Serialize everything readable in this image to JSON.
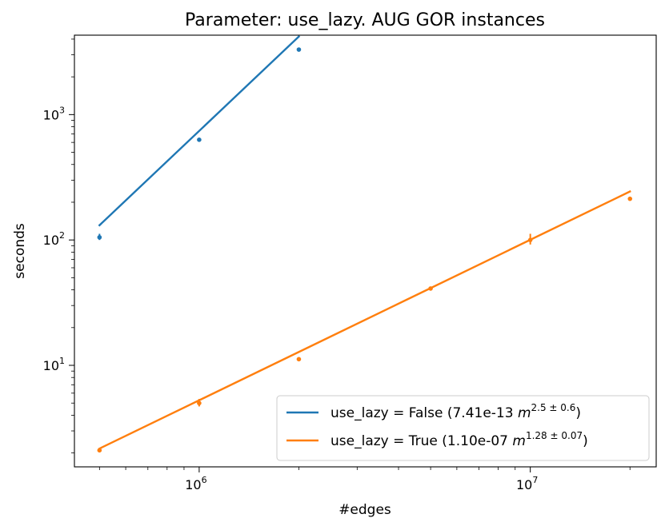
{
  "chart_data": {
    "type": "line",
    "title": "Parameter: use_lazy. AUG GOR instances",
    "xlabel": "#edges",
    "ylabel": "seconds",
    "xscale": "log",
    "yscale": "log",
    "xlim": [
      420000,
      24000000
    ],
    "ylim": [
      1.55,
      4300
    ],
    "x_ticks": [
      {
        "base": "10",
        "exp": "6"
      },
      {
        "base": "10",
        "exp": "7"
      }
    ],
    "y_ticks": [
      {
        "base": "10",
        "exp": "1"
      },
      {
        "base": "10",
        "exp": "2"
      },
      {
        "base": "10",
        "exp": "3"
      }
    ],
    "legend_position": "lower right",
    "series": [
      {
        "name": "use_lazy = False",
        "legend_prefix": "use_lazy = False (7.41e-13 ",
        "legend_var": "m",
        "legend_exp": "2.5 ± 0.6",
        "legend_suffix": ")",
        "color": "#1f77b4",
        "fit": {
          "coef": 7.41e-13,
          "exp": 2.5,
          "exp_err": 0.6
        },
        "points": [
          {
            "x": 500000,
            "y": 105,
            "err_low": 100,
            "err_high": 112
          },
          {
            "x": 1000000,
            "y": 630,
            "err_low": 618,
            "err_high": 642
          },
          {
            "x": 2000000,
            "y": 3300,
            "err_low": 3280,
            "err_high": 3330
          }
        ]
      },
      {
        "name": "use_lazy = True",
        "legend_prefix": "use_lazy = True (1.10e-07 ",
        "legend_var": "m",
        "legend_exp": "1.28 ± 0.07",
        "legend_suffix": ")",
        "color": "#ff7f0e",
        "fit": {
          "coef": 1.1e-07,
          "exp": 1.28,
          "exp_err": 0.07
        },
        "points": [
          {
            "x": 500000,
            "y": 2.1,
            "err_low": 2.05,
            "err_high": 2.15
          },
          {
            "x": 1000000,
            "y": 5.0,
            "err_low": 4.7,
            "err_high": 5.4
          },
          {
            "x": 2000000,
            "y": 11.2,
            "err_low": 11.0,
            "err_high": 11.4
          },
          {
            "x": 5000000,
            "y": 41,
            "err_low": 40,
            "err_high": 42
          },
          {
            "x": 10000000,
            "y": 100,
            "err_low": 92,
            "err_high": 112
          },
          {
            "x": 20000000,
            "y": 213,
            "err_low": 210,
            "err_high": 217
          }
        ]
      }
    ]
  }
}
